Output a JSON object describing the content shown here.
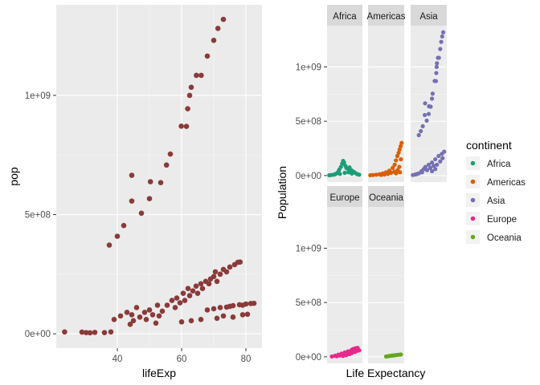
{
  "chart_data": [
    {
      "type": "scatter",
      "xlabel": "lifeExp",
      "ylabel": "pop",
      "xlim": [
        21,
        85
      ],
      "ylim": [
        -60000000,
        1380000000
      ],
      "xticks": [
        40,
        60,
        80
      ],
      "xtick_labels": [
        "40",
        "60",
        "80"
      ],
      "yticks": [
        0,
        500000000,
        1000000000
      ],
      "ytick_labels": [
        "0e+00",
        "5e+08",
        "1e+09"
      ],
      "point_color": "#8B3A3A",
      "grid": true,
      "points": [
        [
          23.6,
          8000000
        ],
        [
          29,
          7000000
        ],
        [
          30.3,
          5000000
        ],
        [
          31.5,
          4000000
        ],
        [
          33,
          6000000
        ],
        [
          36,
          5000000
        ],
        [
          38,
          8000000
        ],
        [
          37.5,
          372000000
        ],
        [
          40,
          409000000
        ],
        [
          42,
          454000000
        ],
        [
          44.5,
          557000000
        ],
        [
          44.5,
          665000000
        ],
        [
          47.5,
          506000000
        ],
        [
          50,
          567000000
        ],
        [
          50.3,
          638000000
        ],
        [
          53.5,
          634000000
        ],
        [
          55.3,
          708000000
        ],
        [
          56.5,
          754000000
        ],
        [
          59.9,
          871000000
        ],
        [
          61.5,
          870000000
        ],
        [
          61.9,
          944000000
        ],
        [
          62.5,
          1000000000
        ],
        [
          63,
          1034000000
        ],
        [
          64.6,
          1084000000
        ],
        [
          66.1,
          1084000000
        ],
        [
          68,
          1165000000
        ],
        [
          70,
          1231000000
        ],
        [
          71.3,
          1281000000
        ],
        [
          73,
          1319000000
        ],
        [
          39,
          60000000
        ],
        [
          41,
          75000000
        ],
        [
          43,
          90000000
        ],
        [
          44.5,
          80000000
        ],
        [
          45,
          55000000
        ],
        [
          46,
          110000000
        ],
        [
          47,
          70000000
        ],
        [
          48.5,
          90000000
        ],
        [
          49,
          60000000
        ],
        [
          50,
          100000000
        ],
        [
          51,
          80000000
        ],
        [
          52.5,
          120000000
        ],
        [
          53,
          75000000
        ],
        [
          54,
          95000000
        ],
        [
          55.5,
          120000000
        ],
        [
          57,
          140000000
        ],
        [
          58,
          110000000
        ],
        [
          58.5,
          150000000
        ],
        [
          59.5,
          130000000
        ],
        [
          60.5,
          170000000
        ],
        [
          61,
          140000000
        ],
        [
          62,
          190000000
        ],
        [
          62.5,
          160000000
        ],
        [
          63.5,
          180000000
        ],
        [
          64.5,
          200000000
        ],
        [
          65,
          170000000
        ],
        [
          66,
          210000000
        ],
        [
          66.5,
          190000000
        ],
        [
          67.5,
          220000000
        ],
        [
          68.5,
          210000000
        ],
        [
          69,
          230000000
        ],
        [
          70,
          240000000
        ],
        [
          70.5,
          260000000
        ],
        [
          71,
          220000000
        ],
        [
          72,
          250000000
        ],
        [
          73,
          270000000
        ],
        [
          74,
          260000000
        ],
        [
          75,
          280000000
        ],
        [
          76.5,
          290000000
        ],
        [
          77.5,
          300000000
        ],
        [
          78.2,
          301000000
        ],
        [
          68,
          100000000
        ],
        [
          70,
          105000000
        ],
        [
          72,
          110000000
        ],
        [
          74,
          112000000
        ],
        [
          76,
          118000000
        ],
        [
          78,
          122000000
        ],
        [
          80,
          125000000
        ],
        [
          81.5,
          127000000
        ],
        [
          82.5,
          128000000
        ],
        [
          79,
          120000000
        ],
        [
          75,
          115000000
        ],
        [
          44,
          40000000
        ],
        [
          52,
          45000000
        ],
        [
          60,
          50000000
        ],
        [
          66,
          60000000
        ],
        [
          71,
          65000000
        ],
        [
          76,
          70000000
        ],
        [
          79,
          80000000
        ],
        [
          80.5,
          82000000
        ],
        [
          73,
          75000000
        ],
        [
          63,
          55000000
        ]
      ]
    },
    {
      "type": "scatter",
      "faceted": true,
      "xlabel": "Life Expectancy",
      "ylabel": "Population",
      "ylim": [
        -60000000,
        1380000000
      ],
      "yticks": [
        0,
        500000000,
        1000000000
      ],
      "ytick_labels": [
        "0e+00",
        "5e+08",
        "1e+09"
      ],
      "facets": [
        "Africa",
        "Americas",
        "Asia",
        "Europe",
        "Oceania"
      ],
      "legend": {
        "title": "continent",
        "placement": "right",
        "entries": [
          {
            "label": "Africa",
            "color": "#1B9E77"
          },
          {
            "label": "Americas",
            "color": "#D95F02"
          },
          {
            "label": "Asia",
            "color": "#7570B3"
          },
          {
            "label": "Europe",
            "color": "#E7298A"
          },
          {
            "label": "Oceania",
            "color": "#66A61E"
          }
        ]
      },
      "series": [
        {
          "name": "Africa",
          "color": "#1B9E77",
          "points": [
            [
              0.02,
              3000000
            ],
            [
              0.08,
              5000000
            ],
            [
              0.15,
              8000000
            ],
            [
              0.2,
              12000000
            ],
            [
              0.25,
              20000000
            ],
            [
              0.3,
              35000000
            ],
            [
              0.33,
              55000000
            ],
            [
              0.38,
              80000000
            ],
            [
              0.42,
              110000000
            ],
            [
              0.45,
              135000000
            ],
            [
              0.48,
              120000000
            ],
            [
              0.52,
              90000000
            ],
            [
              0.55,
              70000000
            ],
            [
              0.6,
              60000000
            ],
            [
              0.65,
              75000000
            ],
            [
              0.7,
              50000000
            ],
            [
              0.75,
              40000000
            ],
            [
              0.8,
              30000000
            ],
            [
              0.85,
              20000000
            ],
            [
              0.9,
              12000000
            ],
            [
              0.95,
              8000000
            ],
            [
              0.35,
              15000000
            ],
            [
              0.5,
              25000000
            ],
            [
              0.62,
              30000000
            ],
            [
              0.72,
              18000000
            ]
          ]
        },
        {
          "name": "Americas",
          "color": "#D95F02",
          "points": [
            [
              0.02,
              3000000
            ],
            [
              0.1,
              5000000
            ],
            [
              0.2,
              8000000
            ],
            [
              0.3,
              12000000
            ],
            [
              0.4,
              20000000
            ],
            [
              0.5,
              30000000
            ],
            [
              0.6,
              45000000
            ],
            [
              0.7,
              70000000
            ],
            [
              0.76,
              100000000
            ],
            [
              0.8,
              140000000
            ],
            [
              0.84,
              180000000
            ],
            [
              0.88,
              210000000
            ],
            [
              0.91,
              240000000
            ],
            [
              0.94,
              270000000
            ],
            [
              0.97,
              300000000
            ],
            [
              0.65,
              25000000
            ],
            [
              0.75,
              35000000
            ],
            [
              0.85,
              50000000
            ],
            [
              0.9,
              80000000
            ],
            [
              0.95,
              150000000
            ],
            [
              0.55,
              15000000
            ],
            [
              0.45,
              10000000
            ],
            [
              0.35,
              6000000
            ],
            [
              0.8,
              20000000
            ],
            [
              0.92,
              30000000
            ]
          ]
        },
        {
          "name": "Asia",
          "color": "#7570B3",
          "points": [
            [
              0.02,
              5000000
            ],
            [
              0.1,
              10000000
            ],
            [
              0.2,
              20000000
            ],
            [
              0.28,
              40000000
            ],
            [
              0.35,
              60000000
            ],
            [
              0.4,
              80000000
            ],
            [
              0.5,
              100000000
            ],
            [
              0.6,
              120000000
            ],
            [
              0.7,
              150000000
            ],
            [
              0.8,
              180000000
            ],
            [
              0.9,
              200000000
            ],
            [
              0.97,
              220000000
            ],
            [
              0.2,
              372000000
            ],
            [
              0.26,
              409000000
            ],
            [
              0.32,
              454000000
            ],
            [
              0.38,
              557000000
            ],
            [
              0.39,
              665000000
            ],
            [
              0.44,
              506000000
            ],
            [
              0.5,
              567000000
            ],
            [
              0.51,
              638000000
            ],
            [
              0.56,
              634000000
            ],
            [
              0.6,
              708000000
            ],
            [
              0.62,
              754000000
            ],
            [
              0.68,
              871000000
            ],
            [
              0.72,
              870000000
            ],
            [
              0.73,
              944000000
            ],
            [
              0.74,
              1000000000
            ],
            [
              0.75,
              1034000000
            ],
            [
              0.78,
              1084000000
            ],
            [
              0.81,
              1084000000
            ],
            [
              0.85,
              1165000000
            ],
            [
              0.88,
              1231000000
            ],
            [
              0.91,
              1281000000
            ],
            [
              0.94,
              1319000000
            ],
            [
              0.45,
              50000000
            ],
            [
              0.55,
              70000000
            ],
            [
              0.65,
              90000000
            ],
            [
              0.75,
              100000000
            ],
            [
              0.85,
              130000000
            ],
            [
              0.92,
              160000000
            ],
            [
              0.3,
              30000000
            ],
            [
              0.15,
              15000000
            ],
            [
              0.6,
              40000000
            ],
            [
              0.7,
              60000000
            ]
          ]
        },
        {
          "name": "Europe",
          "color": "#E7298A",
          "points": [
            [
              0.1,
              3000000
            ],
            [
              0.2,
              10000000
            ],
            [
              0.3,
              20000000
            ],
            [
              0.4,
              30000000
            ],
            [
              0.5,
              40000000
            ],
            [
              0.6,
              50000000
            ],
            [
              0.7,
              60000000
            ],
            [
              0.75,
              70000000
            ],
            [
              0.8,
              75000000
            ],
            [
              0.85,
              80000000
            ],
            [
              0.9,
              82000000
            ],
            [
              0.95,
              60000000
            ],
            [
              0.55,
              15000000
            ],
            [
              0.65,
              25000000
            ],
            [
              0.72,
              35000000
            ],
            [
              0.82,
              45000000
            ],
            [
              0.88,
              55000000
            ],
            [
              0.45,
              8000000
            ],
            [
              0.35,
              12000000
            ],
            [
              0.25,
              5000000
            ]
          ]
        },
        {
          "name": "Oceania",
          "color": "#66A61E",
          "points": [
            [
              0.5,
              3000000
            ],
            [
              0.55,
              5000000
            ],
            [
              0.6,
              8000000
            ],
            [
              0.65,
              10000000
            ],
            [
              0.7,
              12000000
            ],
            [
              0.75,
              14000000
            ],
            [
              0.8,
              16000000
            ],
            [
              0.85,
              18000000
            ],
            [
              0.9,
              20000000
            ],
            [
              0.95,
              21000000
            ]
          ]
        }
      ]
    }
  ]
}
